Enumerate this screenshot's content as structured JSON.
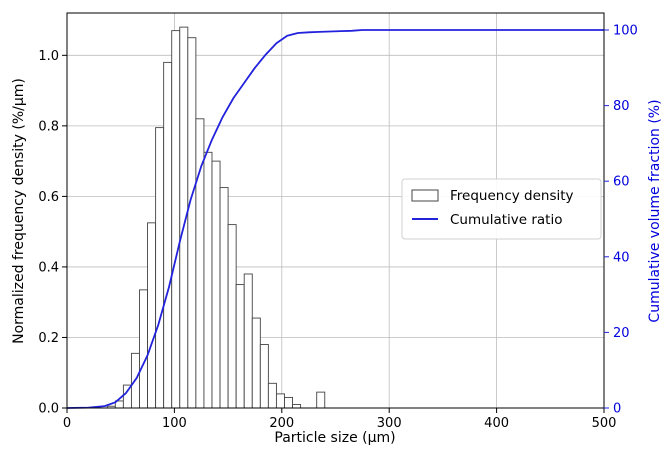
{
  "chart_data": {
    "type": "bar",
    "xlabel": "Particle size (μm)",
    "ylabel": "Normalized frequency density (%/μm)",
    "y2label": "Cumulative volume fraction (%)",
    "xlim": [
      0,
      500
    ],
    "ylim": [
      0,
      1.12
    ],
    "y2lim": [
      0,
      104.5
    ],
    "grid": true,
    "legend_position": "center-right",
    "x_ticks": [
      "0",
      "100",
      "200",
      "300",
      "400",
      "500"
    ],
    "y_ticks": [
      "0.0",
      "0.2",
      "0.4",
      "0.6",
      "0.8",
      "1.0"
    ],
    "y2_ticks": [
      "0",
      "20",
      "40",
      "60",
      "80",
      "100"
    ],
    "bin_width": 7.5,
    "series": [
      {
        "name": "Frequency density",
        "kind": "histogram",
        "color": "#444444",
        "bins": [
          [
            37.5,
            0.005
          ],
          [
            45,
            0.02
          ],
          [
            52.5,
            0.065
          ],
          [
            60,
            0.155
          ],
          [
            67.5,
            0.335
          ],
          [
            75,
            0.525
          ],
          [
            82.5,
            0.795
          ],
          [
            90,
            0.98
          ],
          [
            97.5,
            1.07
          ],
          [
            105,
            1.08
          ],
          [
            112.5,
            1.05
          ],
          [
            120,
            0.82
          ],
          [
            127.5,
            0.725
          ],
          [
            135,
            0.7
          ],
          [
            142.5,
            0.625
          ],
          [
            150,
            0.52
          ],
          [
            157.5,
            0.35
          ],
          [
            165,
            0.38
          ],
          [
            172.5,
            0.255
          ],
          [
            180,
            0.18
          ],
          [
            187.5,
            0.07
          ],
          [
            195,
            0.04
          ],
          [
            202.5,
            0.03
          ],
          [
            210,
            0.01
          ],
          [
            232.5,
            0.045
          ]
        ]
      },
      {
        "name": "Cumulative ratio",
        "kind": "line",
        "color": "#2222dd",
        "x": [
          0,
          20,
          35,
          45,
          55,
          65,
          75,
          85,
          95,
          105,
          115,
          125,
          135,
          145,
          155,
          165,
          175,
          185,
          195,
          205,
          215,
          225,
          235,
          245,
          255,
          265,
          275,
          300,
          400,
          500
        ],
        "y": [
          0,
          0.1,
          0.5,
          1.5,
          4,
          8,
          14,
          22,
          32,
          44,
          55,
          64,
          71,
          77,
          82,
          86,
          90,
          93.5,
          96.5,
          98.5,
          99.2,
          99.4,
          99.5,
          99.6,
          99.7,
          99.8,
          100,
          100,
          100,
          100
        ]
      }
    ]
  }
}
